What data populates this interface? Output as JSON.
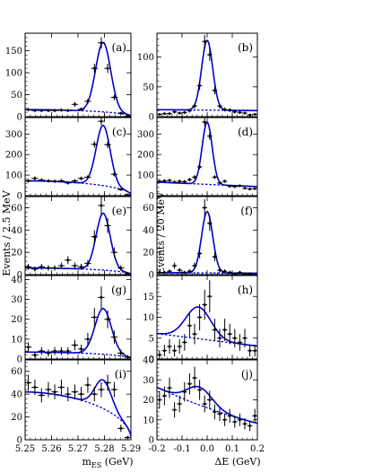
{
  "chart_data": {
    "type": "scatter",
    "ylabel_left": "Events / 2.5 MeV",
    "ylabel_right": "Events / 20 MeV",
    "xlabel_left": "m",
    "xlabel_left_sub": "ES",
    "xlabel_left_unit": " (GeV)",
    "xlabel_right": "ΔE (GeV)",
    "left_x_range": [
      5.25,
      5.29
    ],
    "right_x_range": [
      -0.2,
      0.2
    ],
    "left_x_ticks": [
      "5.25",
      "5.26",
      "5.27",
      "5.28",
      "5.29"
    ],
    "right_x_ticks": [
      "-0.2",
      "-0.1",
      "0.0",
      "0.1",
      "0.2"
    ],
    "line_color": "#0000cc",
    "panels": [
      {
        "label": "(a)",
        "side": "left",
        "row": 0,
        "ylim": [
          0,
          190
        ],
        "yticks": [
          0,
          50,
          100,
          150
        ],
        "fit": {
          "bkg0": 16,
          "bkg1": 9,
          "amp": 158,
          "mu": 5.2795,
          "sig": 0.00285,
          "tailAmp": 0
        },
        "points": [
          [
            5.2512,
            16
          ],
          [
            5.2537,
            14
          ],
          [
            5.2562,
            14
          ],
          [
            5.2588,
            14
          ],
          [
            5.2612,
            14
          ],
          [
            5.2637,
            15
          ],
          [
            5.2662,
            14
          ],
          [
            5.2688,
            28
          ],
          [
            5.2712,
            17
          ],
          [
            5.2737,
            35
          ],
          [
            5.2762,
            110
          ],
          [
            5.2788,
            168
          ],
          [
            5.2812,
            110
          ],
          [
            5.2837,
            44
          ],
          [
            5.2862,
            8
          ],
          [
            5.2888,
            1
          ]
        ]
      },
      {
        "label": "(b)",
        "side": "right",
        "row": 0,
        "ylim": [
          0,
          140
        ],
        "yticks": [
          0,
          50,
          100
        ],
        "fit": {
          "bkg0": 11,
          "bkg1": -1.5,
          "amp": 117,
          "mu": 0.0,
          "sig": 0.022,
          "tailAmp": 0
        },
        "points": [
          [
            -0.19,
            4
          ],
          [
            -0.17,
            5
          ],
          [
            -0.15,
            5
          ],
          [
            -0.13,
            8
          ],
          [
            -0.11,
            6
          ],
          [
            -0.09,
            7
          ],
          [
            -0.07,
            10
          ],
          [
            -0.05,
            18
          ],
          [
            -0.03,
            52
          ],
          [
            -0.01,
            126
          ],
          [
            0.01,
            104
          ],
          [
            0.03,
            44
          ],
          [
            0.05,
            18
          ],
          [
            0.07,
            12
          ],
          [
            0.09,
            11
          ],
          [
            0.11,
            8
          ],
          [
            0.13,
            7
          ],
          [
            0.15,
            6
          ],
          [
            0.17,
            3
          ],
          [
            0.19,
            4
          ]
        ]
      },
      {
        "label": "(c)",
        "side": "left",
        "row": 1,
        "ylim": [
          0,
          380
        ],
        "yticks": [
          0,
          100,
          200,
          300
        ],
        "fit": {
          "bkg0": 72,
          "bkg1": 22,
          "amp": 293,
          "mu": 5.2795,
          "sig": 0.00265,
          "tailAmp": 0
        },
        "points": [
          [
            5.2512,
            72
          ],
          [
            5.2537,
            84
          ],
          [
            5.2562,
            76
          ],
          [
            5.2588,
            72
          ],
          [
            5.2612,
            70
          ],
          [
            5.2637,
            72
          ],
          [
            5.2662,
            62
          ],
          [
            5.2688,
            72
          ],
          [
            5.2712,
            84
          ],
          [
            5.2737,
            90
          ],
          [
            5.2762,
            250
          ],
          [
            5.2788,
            362
          ],
          [
            5.2812,
            248
          ],
          [
            5.2837,
            104
          ],
          [
            5.2862,
            30
          ],
          [
            5.2888,
            4
          ]
        ]
      },
      {
        "label": "(d)",
        "side": "right",
        "row": 1,
        "ylim": [
          0,
          380
        ],
        "yticks": [
          0,
          100,
          200,
          300
        ],
        "fit": {
          "bkg0": 55,
          "bkg1": -22,
          "amp": 302,
          "mu": 0.0,
          "sig": 0.02,
          "tailAmp": 0
        },
        "points": [
          [
            -0.19,
            70
          ],
          [
            -0.17,
            72
          ],
          [
            -0.15,
            74
          ],
          [
            -0.13,
            66
          ],
          [
            -0.11,
            70
          ],
          [
            -0.09,
            68
          ],
          [
            -0.07,
            78
          ],
          [
            -0.05,
            90
          ],
          [
            -0.03,
            140
          ],
          [
            -0.01,
            358
          ],
          [
            0.01,
            290
          ],
          [
            0.03,
            90
          ],
          [
            0.05,
            62
          ],
          [
            0.07,
            70
          ],
          [
            0.09,
            46
          ],
          [
            0.11,
            44
          ],
          [
            0.13,
            48
          ],
          [
            0.15,
            36
          ],
          [
            0.17,
            32
          ],
          [
            0.19,
            34
          ]
        ]
      },
      {
        "label": "(e)",
        "side": "left",
        "row": 2,
        "ylim": [
          0,
          70
        ],
        "yticks": [
          0,
          20,
          40,
          60
        ],
        "fit": {
          "bkg0": 6,
          "bkg1": 4,
          "amp": 51,
          "mu": 5.2795,
          "sig": 0.00265,
          "tailAmp": 0
        },
        "points": [
          [
            5.2512,
            7
          ],
          [
            5.2537,
            5
          ],
          [
            5.2562,
            7
          ],
          [
            5.2588,
            6
          ],
          [
            5.2612,
            6
          ],
          [
            5.2637,
            8
          ],
          [
            5.2662,
            13
          ],
          [
            5.2688,
            8
          ],
          [
            5.2712,
            7
          ],
          [
            5.2737,
            10
          ],
          [
            5.2762,
            34
          ],
          [
            5.2788,
            62
          ],
          [
            5.2812,
            44
          ],
          [
            5.2837,
            20
          ],
          [
            5.2862,
            6
          ],
          [
            5.2888,
            1
          ]
        ]
      },
      {
        "label": "(f)",
        "side": "right",
        "row": 2,
        "ylim": [
          0,
          70
        ],
        "yticks": [
          0,
          20,
          40,
          60
        ],
        "fit": {
          "bkg0": 1.5,
          "bkg1": -0.5,
          "amp": 55,
          "mu": 0.0,
          "sig": 0.022,
          "tailAmp": 0
        },
        "points": [
          [
            -0.19,
            2
          ],
          [
            -0.17,
            2
          ],
          [
            -0.15,
            3
          ],
          [
            -0.13,
            8
          ],
          [
            -0.11,
            4
          ],
          [
            -0.09,
            2
          ],
          [
            -0.07,
            3
          ],
          [
            -0.05,
            8
          ],
          [
            -0.03,
            19
          ],
          [
            -0.01,
            60
          ],
          [
            0.01,
            46
          ],
          [
            0.03,
            16
          ],
          [
            0.05,
            4
          ],
          [
            0.07,
            3
          ],
          [
            0.09,
            2
          ],
          [
            0.11,
            1
          ],
          [
            0.13,
            2
          ],
          [
            0.15,
            1
          ],
          [
            0.17,
            1
          ],
          [
            0.19,
            0
          ]
        ]
      },
      {
        "label": "(g)",
        "side": "left",
        "row": 3,
        "ylim": [
          0,
          42
        ],
        "yticks": [
          0,
          10,
          20,
          30,
          40
        ],
        "fit": {
          "bkg0": 3.5,
          "bkg1": 1,
          "amp": 23,
          "mu": 5.2795,
          "sig": 0.0031,
          "tailAmp": 0
        },
        "points": [
          [
            5.2512,
            6
          ],
          [
            5.2537,
            2
          ],
          [
            5.2562,
            4
          ],
          [
            5.2588,
            3
          ],
          [
            5.2612,
            4
          ],
          [
            5.2637,
            4
          ],
          [
            5.2662,
            4
          ],
          [
            5.2688,
            7
          ],
          [
            5.2712,
            5
          ],
          [
            5.2737,
            10
          ],
          [
            5.2762,
            21
          ],
          [
            5.2788,
            31
          ],
          [
            5.2812,
            20
          ],
          [
            5.2837,
            11
          ],
          [
            5.2862,
            3
          ],
          [
            5.2888,
            1
          ]
        ]
      },
      {
        "label": "(h)",
        "side": "right",
        "row": 3,
        "ylim": [
          0,
          20
        ],
        "yticks": [
          0,
          5,
          10,
          15
        ],
        "fit": {
          "bkg0": 4.6,
          "bkg1": -3,
          "amp": 7.6,
          "mu": -0.035,
          "sig": 0.05,
          "tailAmp": 0
        },
        "points": [
          [
            -0.19,
            1
          ],
          [
            -0.17,
            2
          ],
          [
            -0.15,
            3
          ],
          [
            -0.13,
            2
          ],
          [
            -0.11,
            3
          ],
          [
            -0.09,
            4
          ],
          [
            -0.07,
            8
          ],
          [
            -0.05,
            6
          ],
          [
            -0.03,
            10
          ],
          [
            -0.01,
            13
          ],
          [
            0.01,
            15
          ],
          [
            0.03,
            7
          ],
          [
            0.05,
            5
          ],
          [
            0.07,
            7
          ],
          [
            0.09,
            6
          ],
          [
            0.11,
            5
          ],
          [
            0.13,
            4
          ],
          [
            0.15,
            5
          ],
          [
            0.17,
            2
          ],
          [
            0.19,
            2
          ]
        ]
      },
      {
        "label": "(i)",
        "side": "left",
        "row": 4,
        "ylim": [
          0,
          70
        ],
        "yticks": [
          0,
          20,
          40,
          60
        ],
        "fit": {
          "bkg0": 42,
          "bkg1": 38,
          "amp": 25,
          "mu": 5.2795,
          "sig": 0.0031,
          "tailAmp": 0,
          "argus": true
        },
        "points": [
          [
            5.2512,
            50
          ],
          [
            5.2537,
            46
          ],
          [
            5.2562,
            39
          ],
          [
            5.2588,
            44
          ],
          [
            5.2612,
            42
          ],
          [
            5.2637,
            46
          ],
          [
            5.2662,
            40
          ],
          [
            5.2688,
            42
          ],
          [
            5.2712,
            40
          ],
          [
            5.2737,
            48
          ],
          [
            5.2762,
            40
          ],
          [
            5.2788,
            44
          ],
          [
            5.2812,
            50
          ],
          [
            5.2837,
            44
          ],
          [
            5.2862,
            10
          ],
          [
            5.2888,
            2
          ]
        ]
      },
      {
        "label": "(j)",
        "side": "right",
        "row": 4,
        "ylim": [
          0,
          40
        ],
        "yticks": [
          0,
          10,
          20,
          30,
          40
        ],
        "fit": {
          "bkg0": 16,
          "bkg1": -18,
          "amp": 9,
          "mu": -0.03,
          "sig": 0.05,
          "tailAmp": 0,
          "quad": 5
        },
        "points": [
          [
            -0.19,
            20
          ],
          [
            -0.17,
            22
          ],
          [
            -0.15,
            26
          ],
          [
            -0.13,
            15
          ],
          [
            -0.11,
            18
          ],
          [
            -0.09,
            24
          ],
          [
            -0.07,
            28
          ],
          [
            -0.05,
            31
          ],
          [
            -0.03,
            25
          ],
          [
            -0.01,
            18
          ],
          [
            0.01,
            20
          ],
          [
            0.03,
            14
          ],
          [
            0.05,
            13
          ],
          [
            0.07,
            10
          ],
          [
            0.09,
            12
          ],
          [
            0.11,
            9
          ],
          [
            0.13,
            10
          ],
          [
            0.15,
            8
          ],
          [
            0.17,
            7
          ],
          [
            0.19,
            12
          ]
        ]
      }
    ]
  }
}
